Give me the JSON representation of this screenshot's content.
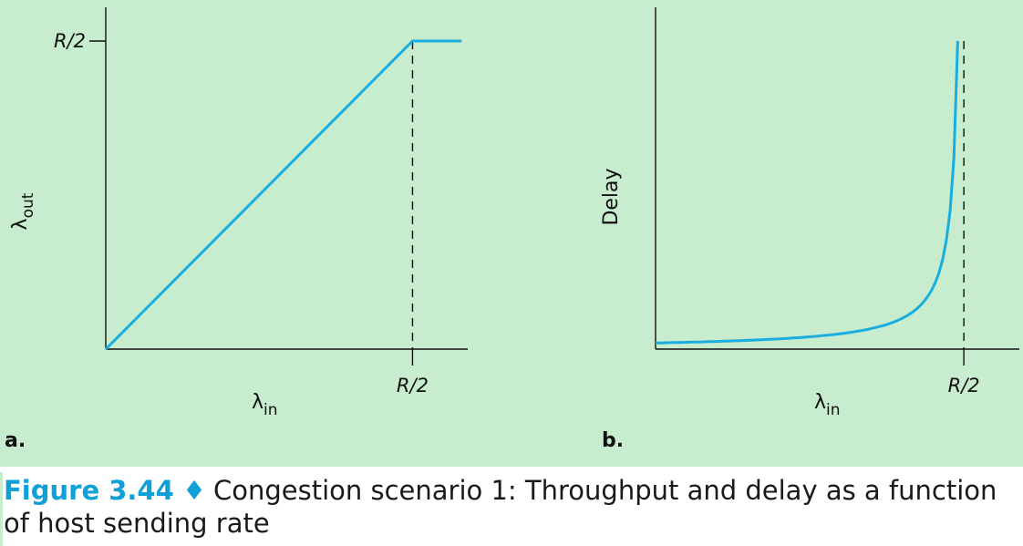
{
  "figure": {
    "label": "Figure 3.44",
    "separator": "♦",
    "caption": "Congestion scenario 1: Throughput and delay as a function of host sending rate"
  },
  "colors": {
    "background": "#c8ecce",
    "curve": "#1aaee0",
    "caption_label": "#10a0d8"
  },
  "chart_data": [
    {
      "panel_label": "a.",
      "type": "line",
      "xlabel": "λin",
      "ylabel": "λout",
      "x_tick_labels": [
        "R/2"
      ],
      "y_tick_labels": [
        "R/2"
      ],
      "series": [
        {
          "x": [
            0,
            0.5,
            0.58
          ],
          "y": [
            0,
            0.5,
            0.5
          ]
        }
      ],
      "reference_line": {
        "orientation": "vertical",
        "x": 0.5,
        "style": "dashed"
      },
      "xlim": [
        0,
        0.59
      ],
      "ylim": [
        0,
        0.5
      ]
    },
    {
      "panel_label": "b.",
      "type": "line",
      "xlabel": "λin",
      "ylabel": "Delay",
      "x_tick_labels": [
        "R/2"
      ],
      "series": [
        {
          "function": "delay = 1/(R/2 - λin)",
          "x": [
            0,
            0.1,
            0.2,
            0.3,
            0.4,
            0.45,
            0.48,
            0.49
          ],
          "y": [
            2,
            2.5,
            3.33,
            5,
            10,
            20,
            50,
            100
          ]
        }
      ],
      "reference_line": {
        "orientation": "vertical",
        "x": 0.5,
        "style": "dashed"
      },
      "xlim": [
        0,
        0.59
      ],
      "ylim": [
        0,
        100
      ]
    }
  ]
}
